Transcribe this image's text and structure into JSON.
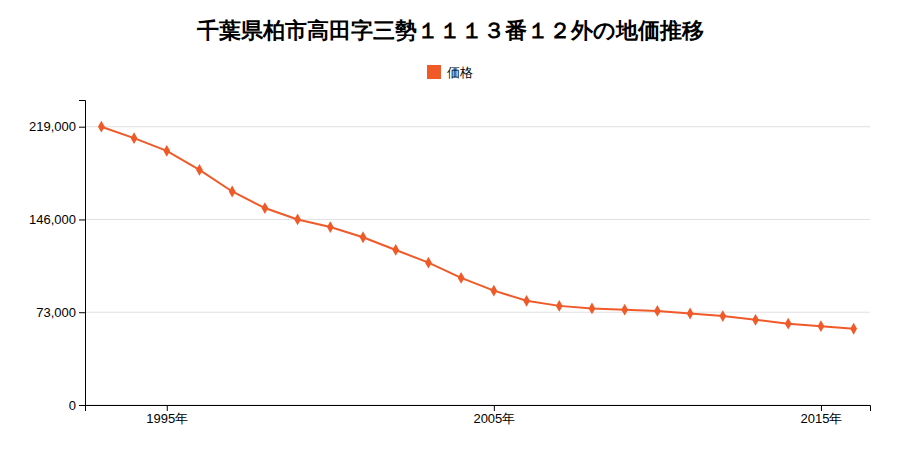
{
  "chart_data": {
    "type": "line",
    "title": "千葉県柏市高田字三勢１１１３番１２外の地価推移",
    "x": [
      1993,
      1994,
      1995,
      1996,
      1997,
      1998,
      1999,
      2000,
      2001,
      2002,
      2003,
      2004,
      2005,
      2006,
      2007,
      2008,
      2009,
      2010,
      2011,
      2012,
      2013,
      2014,
      2015,
      2016
    ],
    "series": [
      {
        "name": "価格",
        "color": "#f05a28",
        "marker": "diamond",
        "values": [
          219000,
          210000,
          200000,
          185000,
          168000,
          155000,
          146000,
          140000,
          132000,
          122000,
          112000,
          100000,
          90000,
          82000,
          78000,
          76000,
          75000,
          74000,
          72000,
          70000,
          67000,
          64000,
          62000,
          60000
        ]
      }
    ],
    "xlim": [
      1992.5,
      2016.5
    ],
    "xticks": [
      {
        "value": 1995,
        "label": "1995年"
      },
      {
        "value": 2005,
        "label": "2005年"
      },
      {
        "value": 2015,
        "label": "2015年"
      }
    ],
    "ylim": [
      0,
      240000
    ],
    "yticks": [
      0,
      {
        "value": 73000,
        "label": "73,000"
      },
      {
        "value": 146000,
        "label": "146,000"
      },
      {
        "value": 219000,
        "label": "219,000"
      }
    ],
    "grid": "y",
    "legend": "top"
  }
}
